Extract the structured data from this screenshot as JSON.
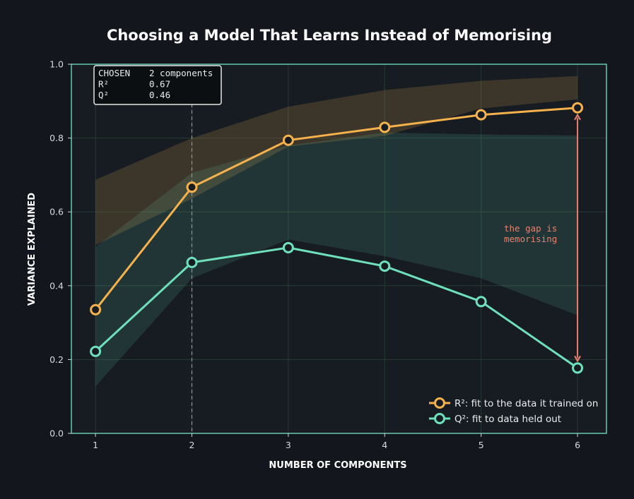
{
  "chart_data": {
    "type": "line",
    "title": "Choosing a Model That Learns Instead of Memorising",
    "xlabel": "NUMBER OF COMPONENTS",
    "ylabel": "VARIANCE EXPLAINED",
    "xlim": [
      0.75,
      6.3
    ],
    "ylim": [
      0,
      1.0
    ],
    "x": [
      1,
      2,
      3,
      4,
      5,
      6
    ],
    "x_ticks": [
      "1",
      "2",
      "3",
      "4",
      "5",
      "6"
    ],
    "y_ticks": [
      "0.0",
      "0.2",
      "0.4",
      "0.6",
      "0.8",
      "1.0"
    ],
    "y_tick_values": [
      0,
      0.2,
      0.4,
      0.6,
      0.8,
      1.0
    ],
    "grid": true,
    "legend_position": "bottom-right",
    "series": [
      {
        "name": "R²: fit to the data it trained on",
        "color": "#f5b14c",
        "values": [
          0.335,
          0.667,
          0.794,
          0.829,
          0.863,
          0.882
        ],
        "band_upper": [
          0.687,
          0.8,
          0.885,
          0.93,
          0.955,
          0.968
        ],
        "band_lower": [
          0.51,
          0.636,
          0.777,
          0.806,
          0.88,
          0.905
        ]
      },
      {
        "name": "Q²: fit to data held out",
        "color": "#6ee0bc",
        "values": [
          0.222,
          0.463,
          0.503,
          0.453,
          0.357,
          0.177
        ],
        "band_upper": [
          0.505,
          0.706,
          0.78,
          0.815,
          0.81,
          0.807
        ],
        "band_lower": [
          0.127,
          0.42,
          0.525,
          0.48,
          0.42,
          0.32
        ]
      }
    ],
    "annotations": {
      "chosen_box": {
        "lines": [
          {
            "label": "CHOSEN",
            "value": "2 components"
          },
          {
            "label": "R²",
            "value": "0.67"
          },
          {
            "label": "Q²",
            "value": "0.46"
          }
        ]
      },
      "chosen_x": 2,
      "gap_label_lines": [
        "the gap is",
        "memorising"
      ],
      "gap_color": "#e8806e",
      "gap_x": 6
    }
  },
  "colors": {
    "background": "#13161d",
    "plot_background": "#171c23",
    "plot_border": "#66c9b0",
    "grid": "#263a32"
  }
}
